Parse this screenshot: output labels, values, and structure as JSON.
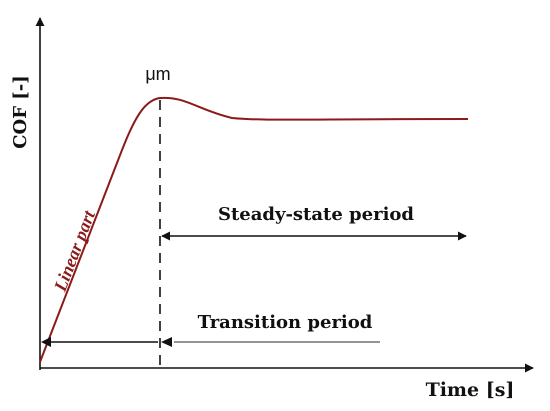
{
  "diagram": {
    "y_axis_label": "COF [-]",
    "x_axis_label": "Time [s]",
    "peak_label": "μm",
    "curve_label": "Linear part",
    "steady_label": "Steady-state period",
    "transition_label": "Transition period",
    "colors": {
      "curve": "#8b1a1a",
      "curve_label": "#8b1a1a",
      "axes": "#111111",
      "transition_line": "#555555"
    }
  }
}
